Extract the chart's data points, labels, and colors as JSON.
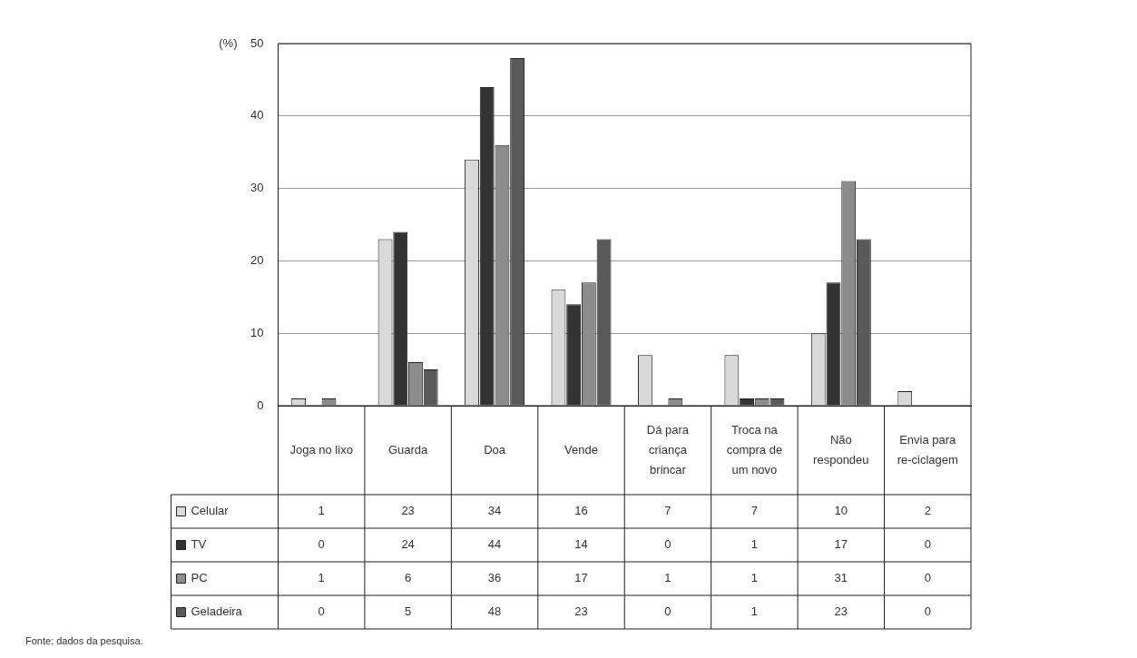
{
  "chart_data": {
    "type": "bar",
    "ylabel": "(%)",
    "categories": [
      "Joga no lixo",
      "Guarda",
      "Doa",
      "Vende",
      "Dá para criança brincar",
      "Troca na compra de um novo",
      "Não respondeu",
      "Envia para re-ciclagem"
    ],
    "series": [
      {
        "name": "Celular",
        "color": "#d9d9d9",
        "values": [
          1,
          23,
          34,
          16,
          7,
          7,
          10,
          2
        ]
      },
      {
        "name": "TV",
        "color": "#333333",
        "values": [
          0,
          24,
          44,
          14,
          0,
          1,
          17,
          0
        ]
      },
      {
        "name": "PC",
        "color": "#8c8c8c",
        "values": [
          1,
          6,
          36,
          17,
          1,
          1,
          31,
          0
        ]
      },
      {
        "name": "Geladeira",
        "color": "#595959",
        "values": [
          0,
          5,
          48,
          23,
          0,
          1,
          23,
          0
        ]
      }
    ],
    "ylim": [
      0,
      50
    ],
    "yticks": [
      0,
      10,
      20,
      30,
      40,
      50
    ],
    "grid": "y",
    "legend": "bottom",
    "data_labels": true,
    "annotations": [
      "Fonte: dados da pesquisa."
    ]
  }
}
